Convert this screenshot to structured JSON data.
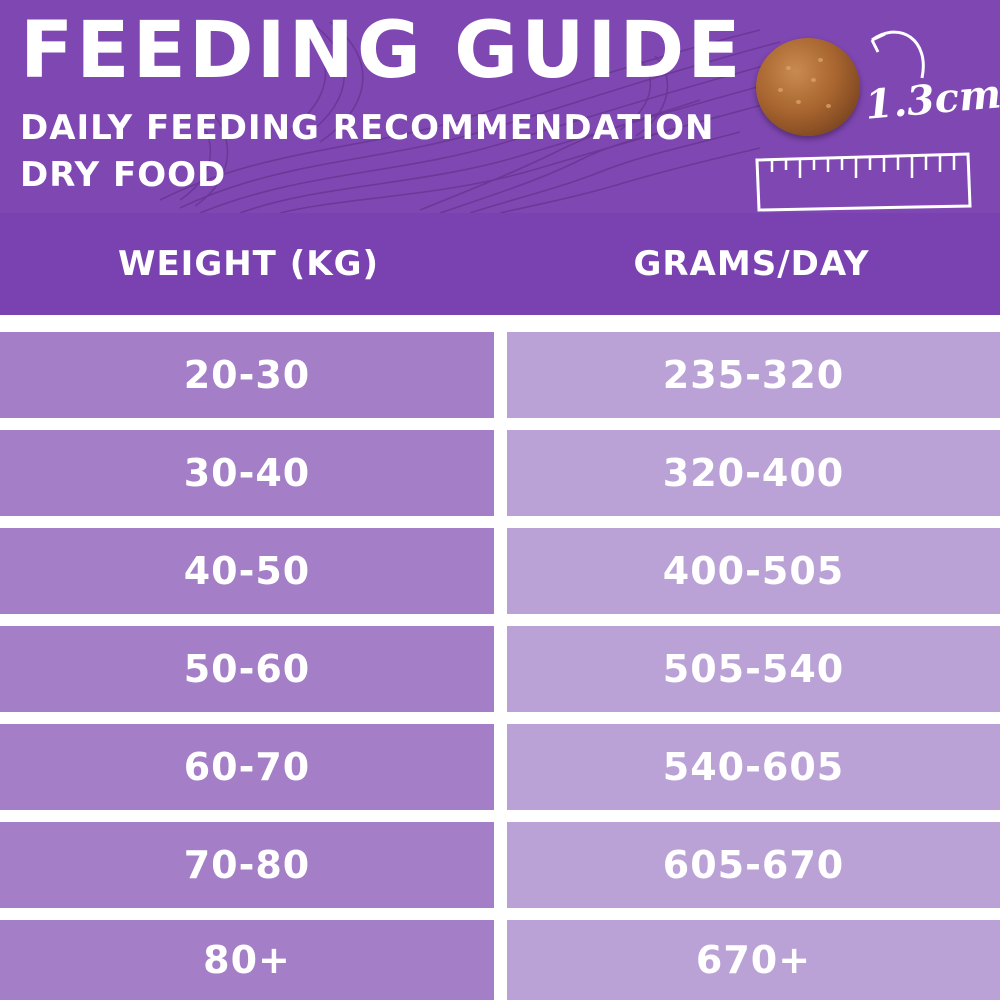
{
  "header": {
    "title": "FEEDING GUIDE",
    "subtitle": "DAILY FEEDING RECOMMENDATION",
    "food_type": "DRY FOOD",
    "kibble_size": "1.3cm"
  },
  "table": {
    "columns": [
      "WEIGHT (KG)",
      "GRAMS/DAY"
    ],
    "rows": [
      {
        "weight": "20-30",
        "grams": "235-320"
      },
      {
        "weight": "30-40",
        "grams": "320-400"
      },
      {
        "weight": "40-50",
        "grams": "400-505"
      },
      {
        "weight": "50-60",
        "grams": "505-540"
      },
      {
        "weight": "60-70",
        "grams": "540-605"
      },
      {
        "weight": "70-80",
        "grams": "605-670"
      },
      {
        "weight": "80+",
        "grams": "670+"
      }
    ]
  },
  "colors": {
    "banner": "#7f47b2",
    "header_row": "#7a42b0",
    "weight_cell": "#a47ec6",
    "grams_cell": "#bba2d6"
  },
  "icons": [
    "kibble-image",
    "curved-arrow-icon",
    "ruler-icon"
  ]
}
